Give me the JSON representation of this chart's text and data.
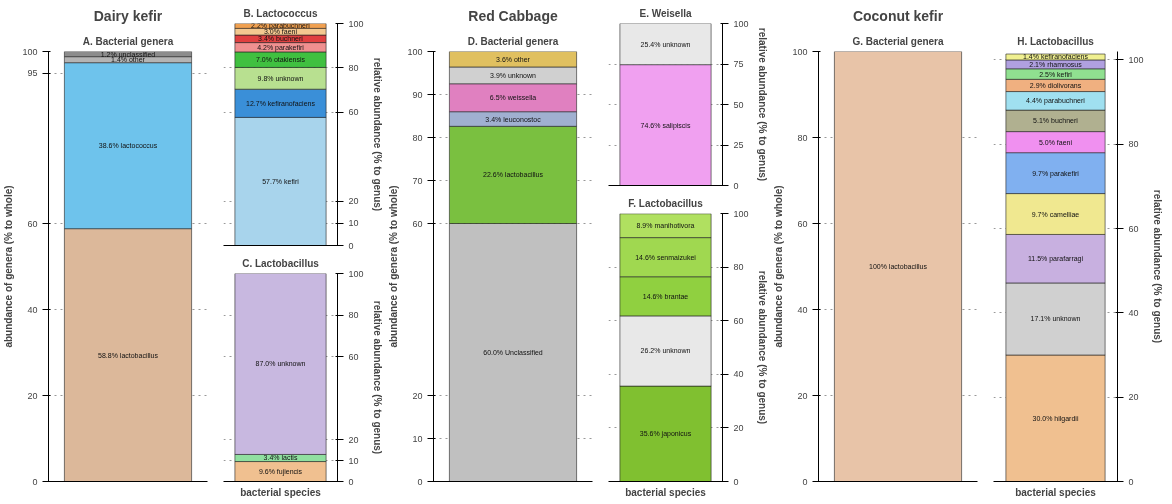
{
  "chart_data": [
    {
      "type": "bar",
      "title": "Dairy kefir",
      "subtitle": "A. Bacterial genera",
      "ylabel": "abundance of genera (% to whole)",
      "categories": [
        null
      ],
      "stacked": true,
      "ylim": [
        0,
        100
      ],
      "yticks": [
        0,
        20,
        40,
        60,
        95,
        100
      ],
      "grid": "y",
      "series": [
        {
          "color": "#dcb89a",
          "values": [
            58.8
          ],
          "value_labels": [
            "58.8% lactobacillus"
          ]
        },
        {
          "color": "#6ec3ec",
          "values": [
            38.6
          ],
          "value_labels": [
            "38.6% lactococcus"
          ]
        },
        {
          "color": "#b4b4b4",
          "values": [
            1.4
          ],
          "value_labels": [
            "1.4% other"
          ]
        },
        {
          "color": "#8c8c8c",
          "values": [
            1.2
          ],
          "value_labels": [
            "1.2% unclassified"
          ]
        }
      ]
    },
    {
      "type": "bar",
      "subtitle": "B. Lactococcus",
      "ylabel": "relative abundance (% to genus)",
      "categories": [
        null
      ],
      "stacked": true,
      "ylim": [
        0,
        100
      ],
      "yticks": [
        0,
        10,
        20,
        60,
        80,
        100
      ],
      "grid": "y",
      "series": [
        {
          "color": "#a8d4ec",
          "values": [
            57.7
          ],
          "value_labels": [
            "57.7% kefiri"
          ]
        },
        {
          "color": "#3a8fd8",
          "values": [
            12.7
          ],
          "value_labels": [
            "12.7% kefiranofaciens"
          ]
        },
        {
          "color": "#b8e090",
          "values": [
            9.8
          ],
          "value_labels": [
            "9.8% unknown"
          ]
        },
        {
          "color": "#40c040",
          "values": [
            7.0
          ],
          "value_labels": [
            "7.0% otakiensis"
          ]
        },
        {
          "color": "#f09090",
          "values": [
            4.2
          ],
          "value_labels": [
            "4.2% parakefiri"
          ]
        },
        {
          "color": "#e04040",
          "values": [
            3.4
          ],
          "value_labels": [
            "3.4% buchneri"
          ]
        },
        {
          "color": "#f4c890",
          "values": [
            3.0
          ],
          "value_labels": [
            "3.0% faeni"
          ]
        },
        {
          "color": "#f0a050",
          "values": [
            2.2
          ],
          "value_labels": [
            "2.2% parabuchneri"
          ]
        }
      ]
    },
    {
      "type": "bar",
      "subtitle": "C. Lactobacillus",
      "xlabel": "bacterial species",
      "ylabel": "relative abundance (% to genus)",
      "categories": [
        null
      ],
      "stacked": true,
      "ylim": [
        0,
        100
      ],
      "yticks": [
        0,
        10,
        20,
        60,
        80,
        100
      ],
      "grid": "y",
      "series": [
        {
          "color": "#f0c090",
          "values": [
            9.6
          ],
          "value_labels": [
            "9.6% fujiencis"
          ]
        },
        {
          "color": "#90e0a0",
          "values": [
            3.4
          ],
          "value_labels": [
            "3.4% lactis"
          ]
        },
        {
          "color": "#c8b8e0",
          "values": [
            87.0
          ],
          "value_labels": [
            "87.0% unknown"
          ]
        }
      ]
    },
    {
      "type": "bar",
      "title": "Red Cabbage",
      "subtitle": "D. Bacterial genera",
      "ylabel": "abundance of genera (% to whole)",
      "categories": [
        null
      ],
      "stacked": true,
      "ylim": [
        0,
        100
      ],
      "yticks": [
        0,
        10,
        20,
        60,
        70,
        80,
        90,
        100
      ],
      "grid": "y",
      "series": [
        {
          "color": "#c0c0c0",
          "values": [
            60.0
          ],
          "value_labels": [
            "60.0% Unclassified"
          ]
        },
        {
          "color": "#7ac040",
          "values": [
            22.6
          ],
          "value_labels": [
            "22.6% lactobacillus"
          ]
        },
        {
          "color": "#a0b0d0",
          "values": [
            3.4
          ],
          "value_labels": [
            "3.4% leuconostoc"
          ]
        },
        {
          "color": "#e080c0",
          "values": [
            6.5
          ],
          "value_labels": [
            "6.5% weissella"
          ]
        },
        {
          "color": "#d0d0d0",
          "values": [
            3.9
          ],
          "value_labels": [
            "3.9% unknown"
          ]
        },
        {
          "color": "#e0c060",
          "values": [
            3.6
          ],
          "value_labels": [
            "3.6% other"
          ]
        }
      ]
    },
    {
      "type": "bar",
      "subtitle": "E. Weisella",
      "ylabel": "relative abundance (% to genus)",
      "categories": [
        null
      ],
      "stacked": true,
      "ylim": [
        0,
        100
      ],
      "yticks": [
        0,
        25,
        50,
        75,
        100
      ],
      "grid": "y",
      "series": [
        {
          "color": "#f0a0f0",
          "values": [
            74.6
          ],
          "value_labels": [
            "74.6% salipiscis"
          ]
        },
        {
          "color": "#e8e8e8",
          "values": [
            25.4
          ],
          "value_labels": [
            "25.4% unknown"
          ]
        }
      ]
    },
    {
      "type": "bar",
      "subtitle": "F. Lactobacillus",
      "xlabel": "bacterial species",
      "ylabel": "relative abundance (% to genus)",
      "categories": [
        null
      ],
      "stacked": true,
      "ylim": [
        0,
        100
      ],
      "yticks": [
        0,
        20,
        40,
        60,
        80,
        100
      ],
      "grid": "y",
      "series": [
        {
          "color": "#80c030",
          "values": [
            35.6
          ],
          "value_labels": [
            "35.6% japonicus"
          ]
        },
        {
          "color": "#e8e8e8",
          "values": [
            26.2
          ],
          "value_labels": [
            "26.2% unknown"
          ]
        },
        {
          "color": "#90d040",
          "values": [
            14.6
          ],
          "value_labels": [
            "14.6% brantae"
          ]
        },
        {
          "color": "#a0d850",
          "values": [
            14.6
          ],
          "value_labels": [
            "14.6% senmaizukei"
          ]
        },
        {
          "color": "#b0e060",
          "values": [
            8.9
          ],
          "value_labels": [
            "8.9% manihotivora"
          ]
        }
      ]
    },
    {
      "type": "bar",
      "title": "Coconut kefir",
      "subtitle": "G. Bacterial genera",
      "ylabel": "abundance of genera (% to whole)",
      "categories": [
        null
      ],
      "stacked": true,
      "ylim": [
        0,
        100
      ],
      "yticks": [
        0,
        20,
        40,
        60,
        80,
        100
      ],
      "grid": "y",
      "series": [
        {
          "color": "#e8c4a8",
          "values": [
            100
          ],
          "value_labels": [
            "100% lactobacillus"
          ]
        }
      ]
    },
    {
      "type": "bar",
      "subtitle": "H. Lactobacillus",
      "xlabel": "bacterial species",
      "ylabel": "relative abundance (% to genus)",
      "categories": [
        null
      ],
      "stacked": true,
      "ylim": [
        0,
        102
      ],
      "yticks": [
        0,
        20,
        40,
        60,
        80,
        100
      ],
      "grid": "y",
      "series": [
        {
          "color": "#f0c090",
          "values": [
            30.0
          ],
          "value_labels": [
            "30.0% hilgardii"
          ]
        },
        {
          "color": "#d0d0d0",
          "values": [
            17.1
          ],
          "value_labels": [
            "17.1% unknown"
          ]
        },
        {
          "color": "#c8b0e0",
          "values": [
            11.5
          ],
          "value_labels": [
            "11.5% parafarragi"
          ]
        },
        {
          "color": "#f0e890",
          "values": [
            9.7
          ],
          "value_labels": [
            "9.7% camelliae"
          ]
        },
        {
          "color": "#80b0f0",
          "values": [
            9.7
          ],
          "value_labels": [
            "9.7% parakefiri"
          ]
        },
        {
          "color": "#f090f0",
          "values": [
            5.0
          ],
          "value_labels": [
            "5.0% faeni"
          ]
        },
        {
          "color": "#b0b090",
          "values": [
            5.1
          ],
          "value_labels": [
            "5.1% buchneri"
          ]
        },
        {
          "color": "#a0e0f0",
          "values": [
            4.4
          ],
          "value_labels": [
            "4.4% parabuchneri"
          ]
        },
        {
          "color": "#f0b080",
          "values": [
            2.9
          ],
          "value_labels": [
            "2.9% diolivorans"
          ]
        },
        {
          "color": "#90e090",
          "values": [
            2.5
          ],
          "value_labels": [
            "2.5% kefiri"
          ]
        },
        {
          "color": "#b0a0e0",
          "values": [
            2.1
          ],
          "value_labels": [
            "2.1% rhamnosus"
          ]
        },
        {
          "color": "#f0f090",
          "values": [
            1.4
          ],
          "value_labels": [
            "1.4% kefiranofaciens"
          ]
        }
      ]
    }
  ]
}
